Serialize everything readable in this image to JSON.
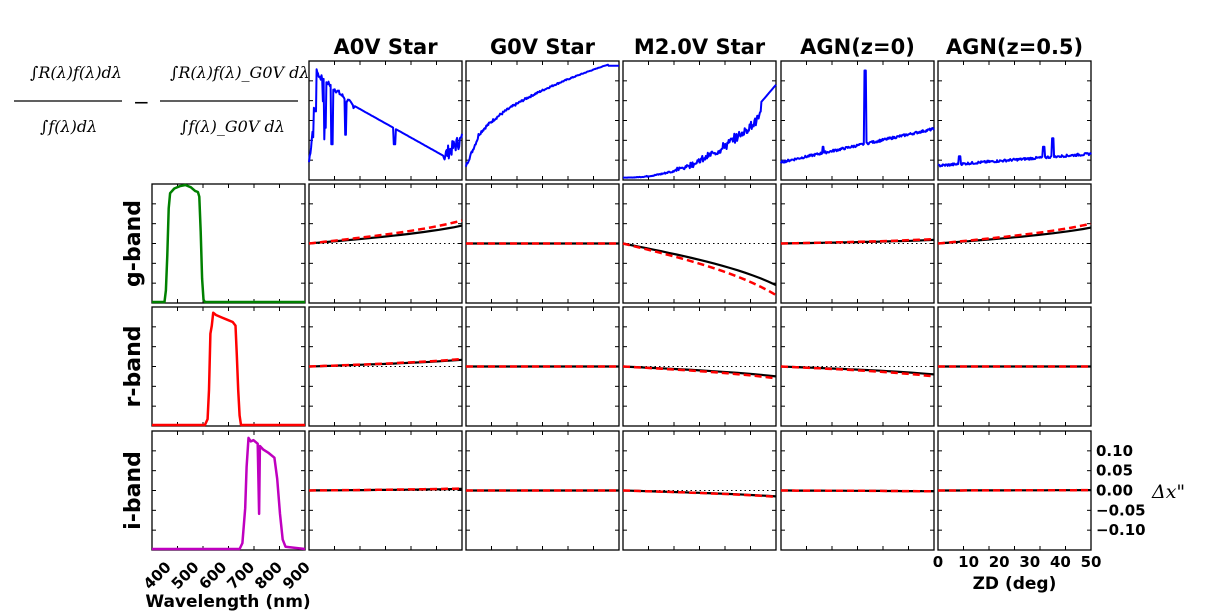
{
  "chart_data": {
    "type": "line",
    "column_titles": [
      "A0V Star",
      "G0V Star",
      "M2.0V Star",
      "AGN(z=0)",
      "AGN(z=0.5)"
    ],
    "row_labels": [
      "g-band",
      "r-band",
      "i-band"
    ],
    "equation": {
      "term1_num": "∫R(λ)f(λ)dλ",
      "term1_den": "∫f(λ)dλ",
      "minus": "−",
      "term2_num": "∫R(λ)f(λ)_G0V dλ",
      "term2_den": "∫f(λ)_G0V dλ"
    },
    "filter_xaxis": {
      "label": "Wavelength (nm)",
      "ticks": [
        400,
        500,
        600,
        700,
        800,
        900
      ],
      "tick_labels": [
        "400",
        "500",
        "600",
        "700",
        "800",
        "900"
      ],
      "xlim": [
        350,
        900
      ]
    },
    "zd_xaxis": {
      "label": "ZD (deg)",
      "ticks": [
        0,
        10,
        20,
        30,
        40,
        50
      ],
      "tick_labels": [
        "0",
        "10",
        "20",
        "30",
        "40",
        "50"
      ],
      "xlim": [
        0,
        50
      ]
    },
    "dx_yaxis": {
      "label": "Δx\"",
      "ticks": [
        0.1,
        0.05,
        0.0,
        -0.05,
        -0.1
      ],
      "tick_labels": [
        "0.10",
        "0.05",
        "0.00",
        "−0.05",
        "−0.10"
      ],
      "ylim": [
        -0.15,
        0.15
      ]
    },
    "filters": [
      {
        "band": "g-band",
        "color": "#008000",
        "curve": [
          [
            350,
            0
          ],
          [
            395,
            0
          ],
          [
            400,
            0.1
          ],
          [
            405,
            0.4
          ],
          [
            410,
            0.8
          ],
          [
            415,
            0.93
          ],
          [
            430,
            0.97
          ],
          [
            450,
            0.99
          ],
          [
            470,
            1.0
          ],
          [
            490,
            0.98
          ],
          [
            505,
            0.95
          ],
          [
            515,
            0.94
          ],
          [
            520,
            0.9
          ],
          [
            525,
            0.6
          ],
          [
            530,
            0.2
          ],
          [
            535,
            0.02
          ],
          [
            540,
            0
          ],
          [
            900,
            0
          ]
        ]
      },
      {
        "band": "r-band",
        "color": "#ff0000",
        "curve": [
          [
            350,
            0
          ],
          [
            540,
            0
          ],
          [
            550,
            0.05
          ],
          [
            555,
            0.3
          ],
          [
            560,
            0.78
          ],
          [
            565,
            0.85
          ],
          [
            570,
            0.96
          ],
          [
            580,
            0.94
          ],
          [
            600,
            0.92
          ],
          [
            620,
            0.9
          ],
          [
            640,
            0.88
          ],
          [
            650,
            0.85
          ],
          [
            655,
            0.6
          ],
          [
            660,
            0.3
          ],
          [
            665,
            0.08
          ],
          [
            670,
            0
          ],
          [
            900,
            0
          ]
        ]
      },
      {
        "band": "i-band",
        "color": "#bf00bf",
        "curve": [
          [
            350,
            0
          ],
          [
            665,
            0
          ],
          [
            675,
            0.05
          ],
          [
            685,
            0.35
          ],
          [
            690,
            0.7
          ],
          [
            697,
            0.95
          ],
          [
            705,
            0.92
          ],
          [
            715,
            0.93
          ],
          [
            730,
            0.9
          ],
          [
            735,
            0.3
          ],
          [
            738,
            0.88
          ],
          [
            750,
            0.85
          ],
          [
            770,
            0.82
          ],
          [
            790,
            0.78
          ],
          [
            800,
            0.6
          ],
          [
            810,
            0.3
          ],
          [
            820,
            0.08
          ],
          [
            830,
            0.02
          ],
          [
            900,
            0
          ]
        ]
      }
    ],
    "spectra_series_color": "#0000ff",
    "calculated_color": "#000000",
    "approximation_color": "#ff0000",
    "reference_line": {
      "y": 0.0,
      "style": "dotted"
    },
    "offsets_at_zd50": {
      "A0V Star": {
        "g-band": [
          0.045,
          0.058
        ],
        "r-band": [
          0.017,
          0.019
        ],
        "i-band": [
          0.004,
          0.005
        ]
      },
      "G0V Star": {
        "g-band": [
          0.0,
          0.0
        ],
        "r-band": [
          0.0,
          0.0
        ],
        "i-band": [
          0.0,
          0.0
        ]
      },
      "M2.0V Star": {
        "g-band": [
          -0.105,
          -0.13
        ],
        "r-band": [
          -0.025,
          -0.03
        ],
        "i-band": [
          -0.015,
          -0.016
        ]
      },
      "AGN(z=0)": {
        "g-band": [
          0.009,
          0.011
        ],
        "r-band": [
          -0.02,
          -0.025
        ],
        "i-band": [
          -0.002,
          -0.002
        ]
      },
      "AGN(z=0.5)": {
        "g-band": [
          0.04,
          0.05
        ],
        "r-band": [
          0.0,
          0.0
        ],
        "i-band": [
          0.001,
          0.001
        ]
      }
    }
  }
}
